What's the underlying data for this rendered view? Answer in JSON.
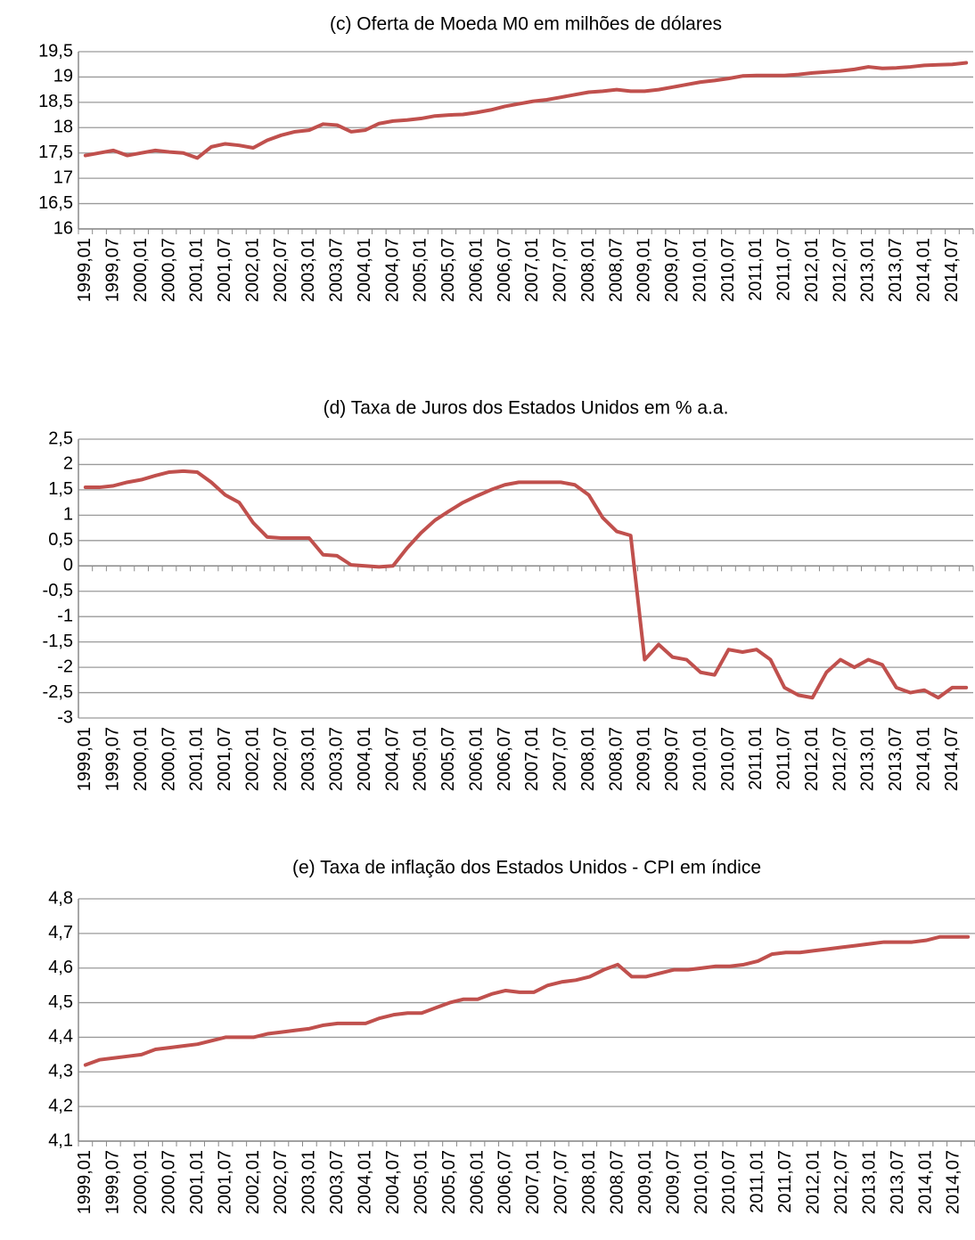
{
  "chart_data": [
    {
      "type": "line",
      "title": "(c) Oferta de Moeda M0 em milhões de dólares",
      "color": "#c0504d",
      "grid": true,
      "ylim": [
        16,
        19.5
      ],
      "yticks": [
        16,
        {
          "value": 16.5,
          "label": "16,5"
        },
        17,
        {
          "value": 17.5,
          "label": "17,5"
        },
        18,
        {
          "value": 18.5,
          "label": "18,5"
        },
        19,
        {
          "value": 19.5,
          "label": "19,5"
        }
      ],
      "categories": [
        "1999,01",
        null,
        "1999,07",
        null,
        "2000,01",
        null,
        "2000,07",
        null,
        "2001,01",
        null,
        "2001,07",
        null,
        "2002,01",
        null,
        "2002,07",
        null,
        "2003,01",
        null,
        "2003,07",
        null,
        "2004,01",
        null,
        "2004,07",
        null,
        "2005,01",
        null,
        "2005,07",
        null,
        "2006,01",
        null,
        "2006,07",
        null,
        "2007,01",
        null,
        "2007,07",
        null,
        "2008,01",
        null,
        "2008,07",
        null,
        "2009,01",
        null,
        "2009,07",
        null,
        "2010,01",
        null,
        "2010,07",
        null,
        "2011,01",
        null,
        "2011,07",
        null,
        "2012,01",
        null,
        "2012,07",
        null,
        "2013,01",
        null,
        "2013,07",
        null,
        "2014,01",
        null,
        "2014,07",
        null
      ],
      "values": [
        17.45,
        17.5,
        17.55,
        17.45,
        17.5,
        17.55,
        17.52,
        17.5,
        17.4,
        17.62,
        17.68,
        17.65,
        17.6,
        17.75,
        17.85,
        17.92,
        17.95,
        18.07,
        18.05,
        17.92,
        17.95,
        18.08,
        18.13,
        18.15,
        18.18,
        18.23,
        18.25,
        18.26,
        18.3,
        18.35,
        18.42,
        18.47,
        18.52,
        18.55,
        18.6,
        18.65,
        18.7,
        18.72,
        18.75,
        18.72,
        18.72,
        18.75,
        18.8,
        18.85,
        18.9,
        18.93,
        18.97,
        19.02,
        19.03,
        19.03,
        19.03,
        19.05,
        19.08,
        19.1,
        19.12,
        19.15,
        19.2,
        19.17,
        19.18,
        19.2,
        19.23,
        19.24,
        19.25,
        19.28
      ]
    },
    {
      "type": "line",
      "title": "(d) Taxa de Juros dos Estados Unidos em % a.a.",
      "color": "#c0504d",
      "grid": true,
      "ylim": [
        -3,
        2.5
      ],
      "yticks": [
        -3,
        {
          "value": -2.5,
          "label": "-2,5"
        },
        -2,
        {
          "value": -1.5,
          "label": "-1,5"
        },
        -1,
        {
          "value": -0.5,
          "label": "-0,5"
        },
        0,
        {
          "value": 0.5,
          "label": "0,5"
        },
        1,
        {
          "value": 1.5,
          "label": "1,5"
        },
        2,
        {
          "value": 2.5,
          "label": "2,5"
        }
      ],
      "categories": [
        "1999,01",
        null,
        "1999,07",
        null,
        "2000,01",
        null,
        "2000,07",
        null,
        "2001,01",
        null,
        "2001,07",
        null,
        "2002,01",
        null,
        "2002,07",
        null,
        "2003,01",
        null,
        "2003,07",
        null,
        "2004,01",
        null,
        "2004,07",
        null,
        "2005,01",
        null,
        "2005,07",
        null,
        "2006,01",
        null,
        "2006,07",
        null,
        "2007,01",
        null,
        "2007,07",
        null,
        "2008,01",
        null,
        "2008,07",
        null,
        "2009,01",
        null,
        "2009,07",
        null,
        "2010,01",
        null,
        "2010,07",
        null,
        "2011,01",
        null,
        "2011,07",
        null,
        "2012,01",
        null,
        "2012,07",
        null,
        "2013,01",
        null,
        "2013,07",
        null,
        "2014,01",
        null,
        "2014,07",
        null
      ],
      "values": [
        1.55,
        1.55,
        1.58,
        1.65,
        1.7,
        1.78,
        1.85,
        1.87,
        1.85,
        1.65,
        1.4,
        1.25,
        0.85,
        0.57,
        0.55,
        0.55,
        0.55,
        0.22,
        0.2,
        0.02,
        0,
        -0.02,
        0,
        0.35,
        0.65,
        0.9,
        1.08,
        1.25,
        1.38,
        1.5,
        1.6,
        1.65,
        1.65,
        1.65,
        1.65,
        1.6,
        1.4,
        0.95,
        0.68,
        0.6,
        -1.85,
        -1.55,
        -1.8,
        -1.85,
        -2.1,
        -2.15,
        -1.65,
        -1.7,
        -1.65,
        -1.85,
        -2.4,
        -2.55,
        -2.6,
        -2.1,
        -1.85,
        -2,
        -1.85,
        -1.95,
        -2.4,
        -2.5,
        -2.45,
        -2.6,
        -2.4,
        -2.4
      ]
    },
    {
      "type": "line",
      "title": "(e) Taxa de inflação dos Estados Unidos - CPI em índice",
      "color": "#c0504d",
      "grid": true,
      "ylim": [
        4.1,
        4.8
      ],
      "yticks": [
        {
          "value": 4.1,
          "label": "4,1"
        },
        {
          "value": 4.2,
          "label": "4,2"
        },
        {
          "value": 4.3,
          "label": "4,3"
        },
        {
          "value": 4.4,
          "label": "4,4"
        },
        {
          "value": 4.5,
          "label": "4,5"
        },
        {
          "value": 4.6,
          "label": "4,6"
        },
        {
          "value": 4.7,
          "label": "4,7"
        },
        {
          "value": 4.8,
          "label": "4,8"
        }
      ],
      "categories": [
        "1999,01",
        null,
        "1999,07",
        null,
        "2000,01",
        null,
        "2000,07",
        null,
        "2001,01",
        null,
        "2001,07",
        null,
        "2002,01",
        null,
        "2002,07",
        null,
        "2003,01",
        null,
        "2003,07",
        null,
        "2004,01",
        null,
        "2004,07",
        null,
        "2005,01",
        null,
        "2005,07",
        null,
        "2006,01",
        null,
        "2006,07",
        null,
        "2007,01",
        null,
        "2007,07",
        null,
        "2008,01",
        null,
        "2008,07",
        null,
        "2009,01",
        null,
        "2009,07",
        null,
        "2010,01",
        null,
        "2010,07",
        null,
        "2011,01",
        null,
        "2011,07",
        null,
        "2012,01",
        null,
        "2012,07",
        null,
        "2013,01",
        null,
        "2013,07",
        null,
        "2014,01",
        null,
        "2014,07",
        null
      ],
      "values": [
        4.32,
        4.335,
        4.34,
        4.345,
        4.35,
        4.365,
        4.37,
        4.375,
        4.38,
        4.39,
        4.4,
        4.4,
        4.4,
        4.41,
        4.415,
        4.42,
        4.425,
        4.435,
        4.44,
        4.44,
        4.44,
        4.455,
        4.465,
        4.47,
        4.47,
        4.485,
        4.5,
        4.51,
        4.51,
        4.525,
        4.535,
        4.53,
        4.53,
        4.55,
        4.56,
        4.565,
        4.575,
        4.595,
        4.61,
        4.575,
        4.575,
        4.585,
        4.595,
        4.595,
        4.6,
        4.605,
        4.605,
        4.61,
        4.62,
        4.64,
        4.645,
        4.645,
        4.65,
        4.655,
        4.66,
        4.665,
        4.67,
        4.675,
        4.675,
        4.675,
        4.68,
        4.69,
        4.69,
        4.69
      ]
    }
  ]
}
